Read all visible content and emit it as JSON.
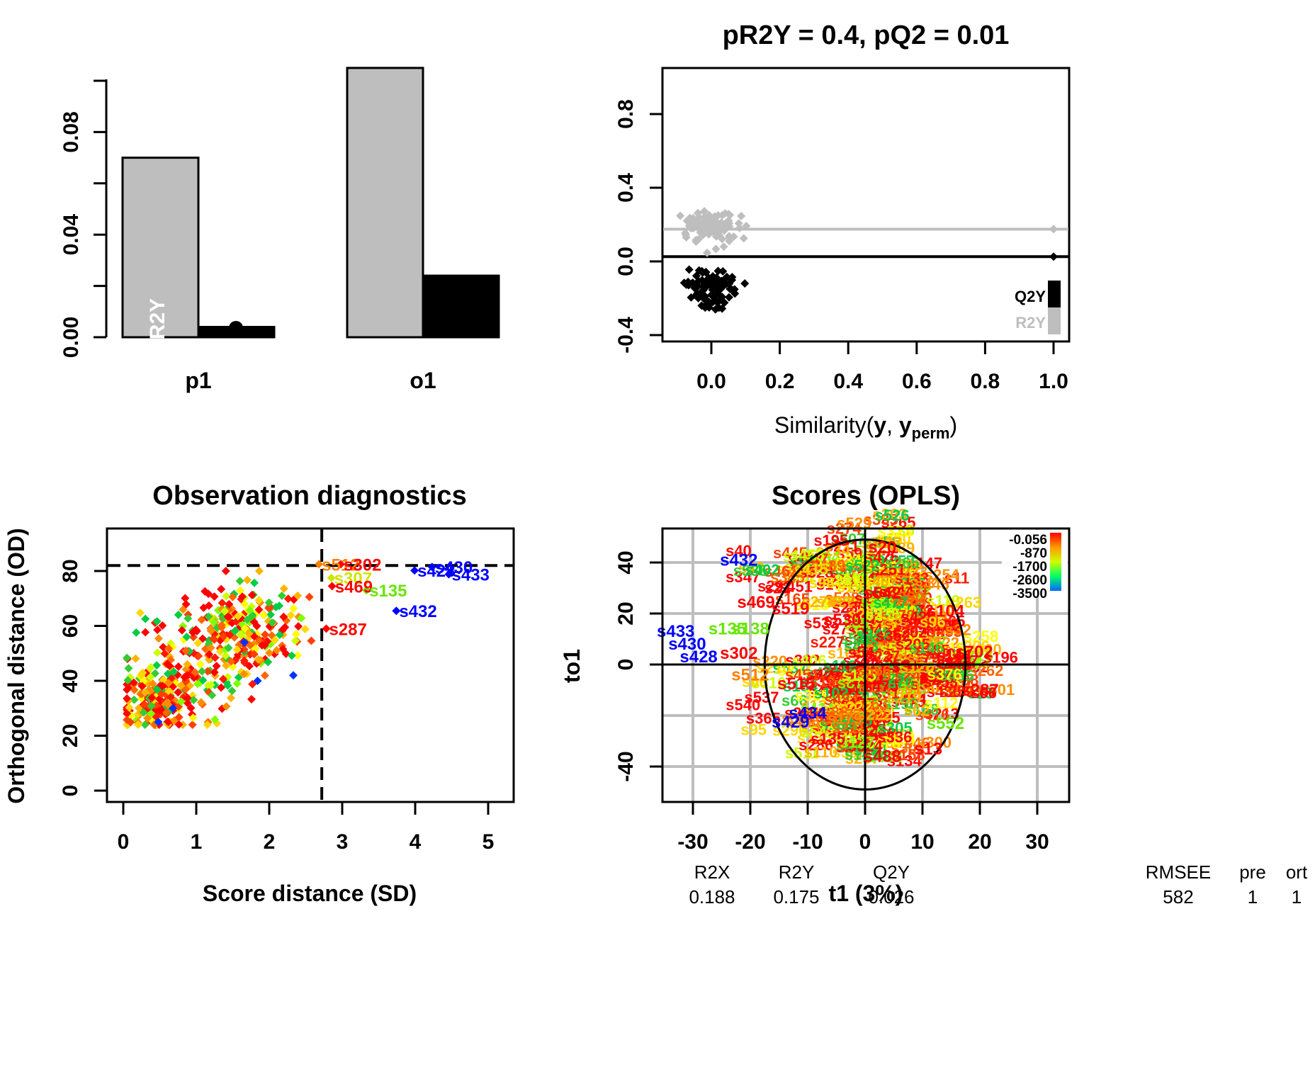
{
  "panels": {
    "summary": {
      "chart_data": {
        "type": "bar",
        "categories": [
          "p1",
          "o1"
        ],
        "series": [
          {
            "name": "R2Y",
            "values": [
              0.07,
              0.105
            ],
            "color": "#bebebe"
          },
          {
            "name": "Q2Y",
            "values": [
              0.004,
              0.024
            ],
            "color": "#000000"
          }
        ],
        "ylim": [
          0,
          0.1
        ],
        "yticks": [
          "0.00",
          "0.04",
          "0.08"
        ],
        "bar_label": "R2Y"
      }
    },
    "permutation": {
      "chart_data": {
        "type": "scatter",
        "title": "pR2Y = 0.4, pQ2 = 0.01",
        "xlabel_prefix": "Similarity(",
        "xlabel_y": "y",
        "xlabel_comma": ", ",
        "xlabel_yperm": "y",
        "xlabel_sub": "perm",
        "xlabel_suffix": ")",
        "xticks": [
          "0.0",
          "0.2",
          "0.4",
          "0.6",
          "0.8",
          "1.0"
        ],
        "yticks": [
          "-0.4",
          "0.0",
          "0.4",
          "0.8"
        ],
        "xlim": [
          -0.15,
          1.05
        ],
        "ylim": [
          -0.45,
          1.05
        ],
        "series": [
          {
            "name": "R2Y",
            "color": "#bebebe",
            "reference": 0.175,
            "model_point": [
              1.0,
              0.175
            ],
            "cluster_center": [
              0.0,
              0.18
            ]
          },
          {
            "name": "Q2Y",
            "color": "#000000",
            "reference": 0.026,
            "model_point": [
              1.0,
              0.026
            ],
            "cluster_center": [
              0.0,
              -0.15
            ]
          }
        ],
        "legend": [
          "Q2Y",
          "R2Y"
        ],
        "legend_position": "bottom-right"
      }
    },
    "observation": {
      "chart_data": {
        "type": "scatter",
        "title": "Observation diagnostics",
        "xlabel": "Score distance (SD)",
        "ylabel": "Orthogonal distance (OD)",
        "xticks": [
          "0",
          "1",
          "2",
          "3",
          "4",
          "5"
        ],
        "yticks": [
          "0",
          "20",
          "40",
          "60",
          "80"
        ],
        "xlim": [
          -0.2,
          5.3
        ],
        "ylim": [
          -3,
          95
        ],
        "sd_threshold": 2.72,
        "od_threshold": 82,
        "labeled": [
          {
            "label": "s512",
            "x": 2.72,
            "y": 82.5,
            "color": "#ff7f00"
          },
          {
            "label": "s302",
            "x": 3.02,
            "y": 82.5,
            "color": "#ff0000"
          },
          {
            "label": "s430",
            "x": 4.27,
            "y": 81.5,
            "color": "#0000ff"
          },
          {
            "label": "s428",
            "x": 4.03,
            "y": 80.2,
            "color": "#0000ff"
          },
          {
            "label": "s433",
            "x": 4.5,
            "y": 78.8,
            "color": "#0000ff"
          },
          {
            "label": "s307",
            "x": 2.89,
            "y": 77.5,
            "color": "#cce600"
          },
          {
            "label": "s469",
            "x": 2.9,
            "y": 74.5,
            "color": "#ff0000"
          },
          {
            "label": "s135",
            "x": 3.37,
            "y": 73.0,
            "color": "#66e600"
          },
          {
            "label": "s432",
            "x": 3.78,
            "y": 65.5,
            "color": "#0000ff"
          },
          {
            "label": "s287",
            "x": 2.82,
            "y": 59.0,
            "color": "#ff0000"
          }
        ]
      }
    },
    "scores": {
      "chart_data": {
        "type": "scatter",
        "title": "Scores (OPLS)",
        "xlabel": "t1 (3%)",
        "ylabel": "to1",
        "xticks": [
          "-30",
          "-20",
          "-10",
          "0",
          "10",
          "20",
          "30"
        ],
        "yticks": [
          "-40",
          "0",
          "20",
          "40"
        ],
        "xlim": [
          -36,
          36
        ],
        "ylim": [
          -53,
          53
        ],
        "ellipse": {
          "rx": 17.5,
          "ry": 49
        },
        "colorbar": [
          "-0.056",
          "-870",
          "-1700",
          "-2600",
          "-3500"
        ],
        "colorbar_colors": [
          "#ff0000",
          "#ff9900",
          "#ccff00",
          "#00ff66",
          "#0066ff"
        ],
        "labeled": [
          {
            "label": "s432",
            "x": -22,
            "y": 41,
            "color": "#0000ff"
          },
          {
            "label": "s433",
            "x": -33,
            "y": 13,
            "color": "#0000ff"
          },
          {
            "label": "s430",
            "x": -31,
            "y": 8,
            "color": "#0000ff"
          },
          {
            "label": "s428",
            "x": -29,
            "y": 3,
            "color": "#0000ff"
          },
          {
            "label": "s302",
            "x": -22,
            "y": 4.5,
            "color": "#ff0000"
          },
          {
            "label": "s512",
            "x": -20,
            "y": -4,
            "color": "#ff7f00"
          },
          {
            "label": "s135",
            "x": -24,
            "y": 14,
            "color": "#66e600"
          },
          {
            "label": "s138",
            "x": -20,
            "y": 14,
            "color": "#66e600"
          },
          {
            "label": "s469",
            "x": -19,
            "y": 24.5,
            "color": "#ff0000"
          },
          {
            "label": "s519",
            "x": -13,
            "y": 22,
            "color": "#ff0000"
          },
          {
            "label": "s530",
            "x": -4,
            "y": 17.5,
            "color": "#ff0000"
          },
          {
            "label": "s542",
            "x": 3,
            "y": 28,
            "color": "#ff0000"
          },
          {
            "label": "s515",
            "x": -12,
            "y": -7.5,
            "color": "#ff0000"
          },
          {
            "label": "s434",
            "x": -10,
            "y": -19,
            "color": "#0000ff"
          },
          {
            "label": "s429",
            "x": -13,
            "y": -22.5,
            "color": "#0000ff"
          },
          {
            "label": "s552",
            "x": 14,
            "y": -23,
            "color": "#66e600"
          },
          {
            "label": "s13",
            "x": 11,
            "y": -33,
            "color": "#ff0000"
          },
          {
            "label": "s488",
            "x": 3,
            "y": -36,
            "color": "#ff0000"
          },
          {
            "label": "s104",
            "x": 14,
            "y": 21,
            "color": "#ff0000"
          },
          {
            "label": "s287",
            "x": 20,
            "y": -10,
            "color": "#ff0000"
          },
          {
            "label": "s702",
            "x": 19,
            "y": 5,
            "color": "#ff0000"
          },
          {
            "label": "s20",
            "x": 3,
            "y": 46,
            "color": "#ff0000"
          }
        ]
      },
      "stats": {
        "headers": [
          "R2X",
          "R2Y",
          "Q2Y",
          "RMSEE",
          "pre",
          "ort"
        ],
        "values": [
          "0.188",
          "0.175",
          "0.026",
          "582",
          "1",
          "1"
        ]
      }
    }
  }
}
